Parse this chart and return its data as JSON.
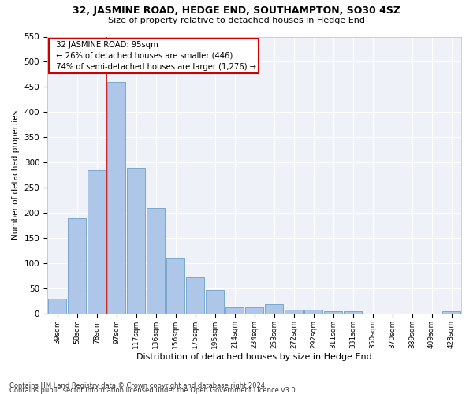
{
  "title": "32, JASMINE ROAD, HEDGE END, SOUTHAMPTON, SO30 4SZ",
  "subtitle": "Size of property relative to detached houses in Hedge End",
  "xlabel": "Distribution of detached houses by size in Hedge End",
  "ylabel": "Number of detached properties",
  "categories": [
    "39sqm",
    "58sqm",
    "78sqm",
    "97sqm",
    "117sqm",
    "136sqm",
    "156sqm",
    "175sqm",
    "195sqm",
    "214sqm",
    "234sqm",
    "253sqm",
    "272sqm",
    "292sqm",
    "311sqm",
    "331sqm",
    "350sqm",
    "370sqm",
    "389sqm",
    "409sqm",
    "428sqm"
  ],
  "values": [
    30,
    190,
    285,
    460,
    290,
    210,
    110,
    72,
    47,
    12,
    12,
    18,
    8,
    7,
    5,
    5,
    0,
    0,
    0,
    0,
    5
  ],
  "bar_color": "#aec6e8",
  "bar_edge_color": "#6a9fc8",
  "property_line_label": "32 JASMINE ROAD: 95sqm",
  "annotation_line1": "← 26% of detached houses are smaller (446)",
  "annotation_line2": "74% of semi-detached houses are larger (1,276) →",
  "annotation_box_color": "#ffffff",
  "annotation_box_edge_color": "#cc0000",
  "vline_color": "#cc0000",
  "ylim": [
    0,
    550
  ],
  "background_color": "#eef2f8",
  "grid_color": "#ffffff",
  "footer1": "Contains HM Land Registry data © Crown copyright and database right 2024.",
  "footer2": "Contains public sector information licensed under the Open Government Licence v3.0."
}
